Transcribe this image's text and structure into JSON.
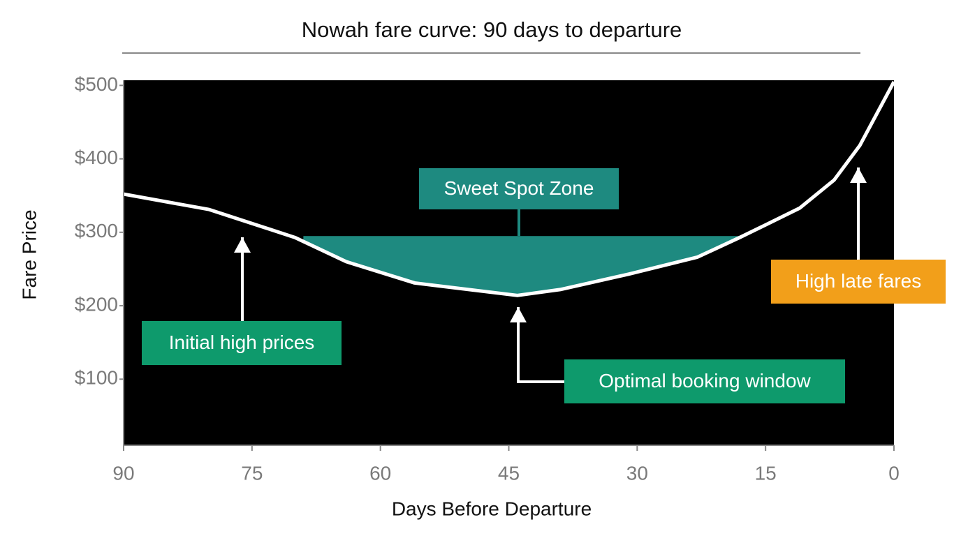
{
  "chart_data": {
    "type": "line",
    "title": "Nowah fare curve: 90 days to departure",
    "x_label": "Days Before Departure",
    "y_label": "Fare Price",
    "x": [
      90,
      80,
      70,
      64,
      56,
      44,
      39,
      31,
      23,
      18,
      15,
      11,
      7,
      4,
      0
    ],
    "series": [
      {
        "name": "Fare",
        "color": "#ffffff",
        "values": [
          352,
          331,
          293,
          260,
          231,
          214,
          222,
          243,
          266,
          293,
          310,
          333,
          371,
          418,
          505
        ]
      }
    ],
    "xlim": [
      90,
      0
    ],
    "xticks": [
      90,
      75,
      60,
      45,
      30,
      15,
      0
    ],
    "ylim": [
      10,
      507
    ],
    "yticks": [
      {
        "value": 100,
        "label": "$100"
      },
      {
        "value": 200,
        "label": "$200"
      },
      {
        "value": 300,
        "label": "$300"
      },
      {
        "value": 400,
        "label": "$400"
      },
      {
        "value": 500,
        "label": "$500"
      }
    ],
    "background": "#000000",
    "sweet_spot": {
      "label": "Sweet Spot Zone",
      "price": 295,
      "from": 69,
      "to": 17,
      "color": "#1e8a80"
    },
    "annotations": [
      {
        "text": "Initial high prices",
        "color": "#0e9a6c"
      },
      {
        "text": "Optimal booking window",
        "color": "#0e9a6c"
      },
      {
        "text": "High late fares",
        "color": "#f29f1a"
      }
    ]
  }
}
